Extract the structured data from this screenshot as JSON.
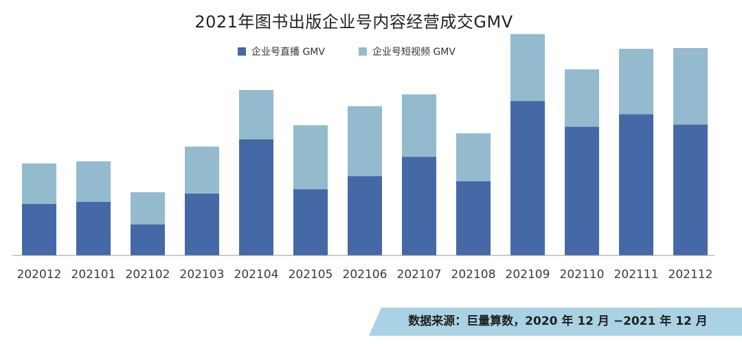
{
  "chart_data": {
    "type": "bar",
    "stacked": true,
    "title": "2021年图书出版企业号内容经营成交GMV",
    "categories": [
      "202012",
      "202101",
      "202102",
      "202103",
      "202104",
      "202105",
      "202106",
      "202107",
      "202108",
      "202109",
      "202110",
      "202111",
      "202112"
    ],
    "series": [
      {
        "name": "企业号直播 GMV",
        "color": "#4568a6",
        "values": [
          70,
          73,
          42,
          84,
          158,
          90,
          108,
          134,
          101,
          210,
          175,
          192,
          178
        ]
      },
      {
        "name": "企业号短视频 GMV",
        "color": "#93bacd",
        "values": [
          55,
          55,
          44,
          64,
          67,
          87,
          95,
          85,
          65,
          91,
          78,
          89,
          104
        ]
      }
    ],
    "ylim": [
      0,
      310
    ],
    "xlabel": "",
    "ylabel": "",
    "grid": false,
    "legend_position": "top-center"
  },
  "source": {
    "text": "数据来源：巨量算数，2020 年 12 月 −2021 年 12 月",
    "banner_color": "#a9d3e4"
  }
}
